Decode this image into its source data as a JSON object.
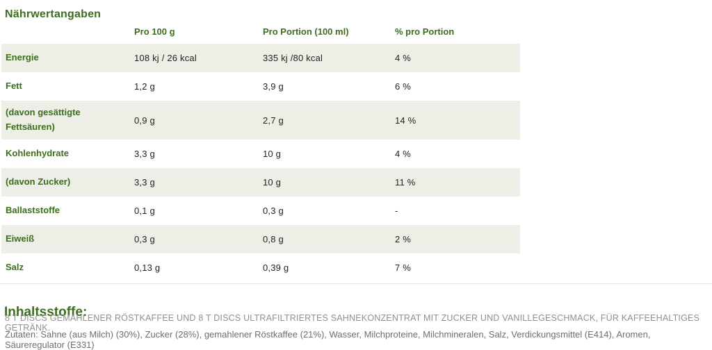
{
  "page": {
    "title": "Nährwertangaben"
  },
  "colors": {
    "brand_green": "#3c6e1e",
    "row_shade": "#edeee6",
    "value_text": "#222222",
    "muted_text": "#8f8f8f",
    "ingredients_text": "#6e6e6e"
  },
  "table": {
    "columns": [
      "",
      "Pro 100 g",
      "Pro Portion (100 ml)",
      "% pro Portion"
    ],
    "rows": [
      {
        "label": "Energie",
        "per_100g": "108 kj / 26 kcal",
        "per_portion": "335 kj /80 kcal",
        "pct_portion": "4 %"
      },
      {
        "label": "Fett",
        "per_100g": "1,2 g",
        "per_portion": "3,9 g",
        "pct_portion": "6 %"
      },
      {
        "label": "(davon gesättigte Fettsäuren)",
        "per_100g": "0,9 g",
        "per_portion": "2,7 g",
        "pct_portion": "14 %"
      },
      {
        "label": "Kohlenhydrate",
        "per_100g": "3,3 g",
        "per_portion": "10 g",
        "pct_portion": "4 %"
      },
      {
        "label": "(davon Zucker)",
        "per_100g": "3,3 g",
        "per_portion": "10 g",
        "pct_portion": "11 %"
      },
      {
        "label": "Ballaststoffe",
        "per_100g": "0,1 g",
        "per_portion": "0,3 g",
        "pct_portion": "-"
      },
      {
        "label": "Eiweiß",
        "per_100g": "0,3 g",
        "per_portion": "0,8 g",
        "pct_portion": "2 %"
      },
      {
        "label": "Salz",
        "per_100g": "0,13 g",
        "per_portion": "0,39 g",
        "pct_portion": "7 %"
      }
    ]
  },
  "ingredients": {
    "heading": "Inhaltsstoffe:",
    "description": "8 T DISCS GEMAHLENER RÖSTKAFFEE UND 8 T DISCS ULTRAFILTRIERTES SAHNEKONZENTRAT MIT ZUCKER UND VANILLEGESCHMACK, FÜR KAFFEEHALTIGES GETRÄNK.",
    "zutaten": "Zutaten: Sahne (aus Milch) (30%), Zucker (28%), gemahlener Röstkaffee (21%), Wasser, Milchproteine, Milchmineralen, Salz, Verdickungsmittel (E414), Aromen, Säureregulator (E331)"
  }
}
